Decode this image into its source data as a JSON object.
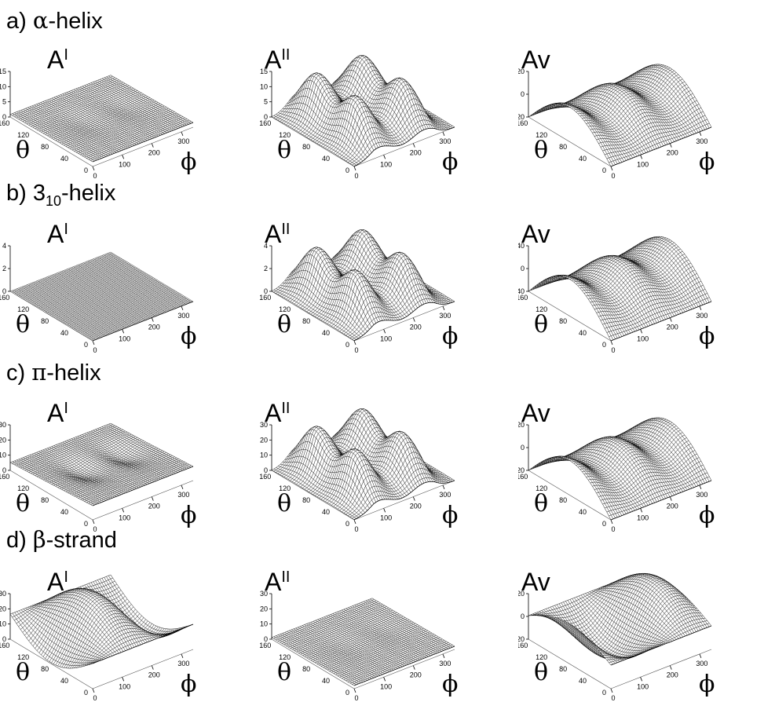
{
  "rows": [
    {
      "id": "a",
      "prefix": "a) ",
      "greek": "α",
      "suffix": "-helix",
      "sub": "",
      "panels": [
        {
          "label_main": "A",
          "label_sup": "I",
          "surface": "flat_dip",
          "amplitude": 0.15,
          "z_ticks": [
            "15",
            "10",
            "5",
            "0"
          ],
          "density": "light"
        },
        {
          "label_main": "A",
          "label_sup": "II",
          "surface": "two_hill",
          "amplitude": 1.0,
          "z_ticks": [
            "15",
            "10",
            "5",
            "0"
          ],
          "density": "light"
        },
        {
          "label_main": "Av",
          "label_sup": "",
          "surface": "wave",
          "amplitude": 1.0,
          "z_ticks": [
            "20",
            "0",
            "-20"
          ],
          "density": "light"
        }
      ]
    },
    {
      "id": "b",
      "prefix": "b) 3",
      "greek": "",
      "suffix": "-helix",
      "sub": "10",
      "panels": [
        {
          "label_main": "A",
          "label_sup": "I",
          "surface": "flat",
          "amplitude": 0.0,
          "z_ticks": [
            "4",
            "2",
            "0"
          ],
          "density": "dense"
        },
        {
          "label_main": "A",
          "label_sup": "II",
          "surface": "two_hill",
          "amplitude": 1.0,
          "z_ticks": [
            "4",
            "2",
            "0"
          ],
          "density": "medium"
        },
        {
          "label_main": "Av",
          "label_sup": "",
          "surface": "wave_tall",
          "amplitude": 1.0,
          "z_ticks": [
            "40",
            "0",
            "-40"
          ],
          "density": "medium"
        }
      ]
    },
    {
      "id": "c",
      "prefix": "c) ",
      "greek": "π",
      "suffix": "-helix",
      "sub": "",
      "panels": [
        {
          "label_main": "A",
          "label_sup": "I",
          "surface": "flat_dip",
          "amplitude": 0.45,
          "z_ticks": [
            "30",
            "20",
            "10",
            "0"
          ],
          "density": "medium"
        },
        {
          "label_main": "A",
          "label_sup": "II",
          "surface": "two_hill",
          "amplitude": 1.0,
          "z_ticks": [
            "30",
            "20",
            "10",
            "0"
          ],
          "density": "medium"
        },
        {
          "label_main": "Av",
          "label_sup": "",
          "surface": "wave",
          "amplitude": 1.0,
          "z_ticks": [
            "20",
            "0",
            "-20"
          ],
          "density": "medium"
        }
      ]
    },
    {
      "id": "d",
      "prefix": "d) ",
      "greek": "β",
      "suffix": "-strand",
      "sub": "",
      "panels": [
        {
          "label_main": "A",
          "label_sup": "I",
          "surface": "s_wave",
          "amplitude": 1.0,
          "z_ticks": [
            "30",
            "20",
            "10",
            "0"
          ],
          "density": "medium"
        },
        {
          "label_main": "A",
          "label_sup": "II",
          "surface": "flat_dip",
          "amplitude": 0.1,
          "z_ticks": [
            "30",
            "20",
            "10",
            "0"
          ],
          "density": "medium"
        },
        {
          "label_main": "Av",
          "label_sup": "",
          "surface": "s_wave_neg",
          "amplitude": 1.0,
          "z_ticks": [
            "20",
            "0",
            "-20"
          ],
          "density": "medium"
        }
      ]
    }
  ],
  "theta_axis": {
    "label": "θ",
    "ticks": [
      "160",
      "120",
      "80",
      "40",
      "0"
    ]
  },
  "phi_axis": {
    "label": "ϕ",
    "ticks": [
      "0",
      "100",
      "200",
      "300"
    ]
  }
}
